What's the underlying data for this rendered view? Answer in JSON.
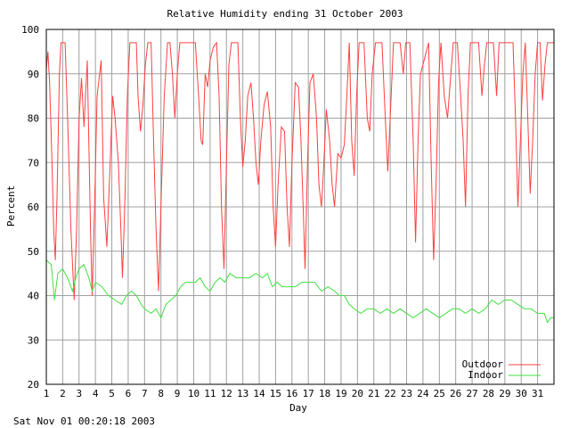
{
  "chart_data": {
    "type": "line",
    "title": "Relative Humidity ending 31 October 2003",
    "xlabel": "Day",
    "ylabel": "Percent",
    "footer": "Sat Nov 01 00:20:18 2003",
    "xlim": [
      1,
      32
    ],
    "ylim": [
      20,
      100
    ],
    "xticks": [
      "1",
      "2",
      "3",
      "4",
      "5",
      "6",
      "7",
      "8",
      "9",
      "10",
      "11",
      "12",
      "13",
      "14",
      "15",
      "16",
      "17",
      "18",
      "19",
      "20",
      "21",
      "22",
      "23",
      "24",
      "25",
      "26",
      "27",
      "28",
      "29",
      "30",
      "31"
    ],
    "yticks": [
      20,
      30,
      40,
      50,
      60,
      70,
      80,
      90,
      100
    ],
    "grid": true,
    "legend_position": "bottom-right",
    "series": [
      {
        "name": "Outdoor",
        "color": "#ff4040",
        "points": [
          [
            1.0,
            91
          ],
          [
            1.1,
            95
          ],
          [
            1.2,
            88
          ],
          [
            1.35,
            70
          ],
          [
            1.45,
            55
          ],
          [
            1.55,
            48
          ],
          [
            1.65,
            62
          ],
          [
            1.8,
            90
          ],
          [
            1.9,
            97
          ],
          [
            2.15,
            97
          ],
          [
            2.3,
            80
          ],
          [
            2.5,
            55
          ],
          [
            2.7,
            39
          ],
          [
            2.85,
            55
          ],
          [
            3.0,
            80
          ],
          [
            3.15,
            89
          ],
          [
            3.3,
            78
          ],
          [
            3.5,
            93
          ],
          [
            3.7,
            55
          ],
          [
            3.8,
            40
          ],
          [
            3.95,
            60
          ],
          [
            4.1,
            85
          ],
          [
            4.35,
            93
          ],
          [
            4.5,
            62
          ],
          [
            4.7,
            51
          ],
          [
            4.9,
            70
          ],
          [
            5.05,
            85
          ],
          [
            5.2,
            80
          ],
          [
            5.4,
            70
          ],
          [
            5.55,
            55
          ],
          [
            5.65,
            44
          ],
          [
            5.8,
            62
          ],
          [
            5.95,
            85
          ],
          [
            6.1,
            97
          ],
          [
            6.5,
            97
          ],
          [
            6.6,
            85
          ],
          [
            6.75,
            77
          ],
          [
            6.9,
            83
          ],
          [
            7.05,
            92
          ],
          [
            7.2,
            97
          ],
          [
            7.4,
            97
          ],
          [
            7.55,
            75
          ],
          [
            7.7,
            55
          ],
          [
            7.85,
            41
          ],
          [
            8.0,
            60
          ],
          [
            8.2,
            85
          ],
          [
            8.4,
            97
          ],
          [
            8.55,
            97
          ],
          [
            8.7,
            90
          ],
          [
            8.85,
            80
          ],
          [
            9.0,
            90
          ],
          [
            9.15,
            97
          ],
          [
            10.1,
            97
          ],
          [
            10.3,
            85
          ],
          [
            10.45,
            75
          ],
          [
            10.55,
            74
          ],
          [
            10.7,
            90
          ],
          [
            10.85,
            87
          ],
          [
            11.0,
            93
          ],
          [
            11.2,
            96
          ],
          [
            11.4,
            97
          ],
          [
            11.55,
            85
          ],
          [
            11.7,
            60
          ],
          [
            11.85,
            46
          ],
          [
            12.0,
            70
          ],
          [
            12.15,
            92
          ],
          [
            12.3,
            97
          ],
          [
            12.7,
            97
          ],
          [
            12.85,
            80
          ],
          [
            13.0,
            69
          ],
          [
            13.15,
            75
          ],
          [
            13.3,
            85
          ],
          [
            13.5,
            88
          ],
          [
            13.65,
            80
          ],
          [
            13.8,
            70
          ],
          [
            13.95,
            65
          ],
          [
            14.1,
            75
          ],
          [
            14.3,
            83
          ],
          [
            14.5,
            86
          ],
          [
            14.7,
            78
          ],
          [
            14.85,
            60
          ],
          [
            15.0,
            51
          ],
          [
            15.15,
            65
          ],
          [
            15.35,
            78
          ],
          [
            15.55,
            77
          ],
          [
            15.7,
            60
          ],
          [
            15.85,
            51
          ],
          [
            16.0,
            70
          ],
          [
            16.2,
            88
          ],
          [
            16.4,
            87
          ],
          [
            16.55,
            75
          ],
          [
            16.7,
            58
          ],
          [
            16.8,
            46
          ],
          [
            16.95,
            70
          ],
          [
            17.1,
            88
          ],
          [
            17.3,
            90
          ],
          [
            17.5,
            80
          ],
          [
            17.65,
            65
          ],
          [
            17.8,
            60
          ],
          [
            17.95,
            70
          ],
          [
            18.1,
            82
          ],
          [
            18.3,
            75
          ],
          [
            18.45,
            65
          ],
          [
            18.6,
            60
          ],
          [
            18.8,
            72
          ],
          [
            19.0,
            71
          ],
          [
            19.2,
            74
          ],
          [
            19.35,
            85
          ],
          [
            19.5,
            97
          ],
          [
            19.65,
            75
          ],
          [
            19.8,
            67
          ],
          [
            19.95,
            85
          ],
          [
            20.1,
            97
          ],
          [
            20.4,
            97
          ],
          [
            20.6,
            80
          ],
          [
            20.75,
            77
          ],
          [
            20.9,
            90
          ],
          [
            21.1,
            97
          ],
          [
            21.5,
            97
          ],
          [
            21.7,
            80
          ],
          [
            21.85,
            68
          ],
          [
            22.0,
            80
          ],
          [
            22.2,
            97
          ],
          [
            22.6,
            97
          ],
          [
            22.8,
            90
          ],
          [
            22.95,
            97
          ],
          [
            23.2,
            97
          ],
          [
            23.4,
            75
          ],
          [
            23.55,
            52
          ],
          [
            23.7,
            75
          ],
          [
            23.85,
            90
          ],
          [
            24.0,
            92
          ],
          [
            24.2,
            95
          ],
          [
            24.35,
            97
          ],
          [
            24.5,
            70
          ],
          [
            24.65,
            48
          ],
          [
            24.8,
            65
          ],
          [
            24.95,
            88
          ],
          [
            25.1,
            97
          ],
          [
            25.3,
            85
          ],
          [
            25.5,
            80
          ],
          [
            25.7,
            90
          ],
          [
            25.85,
            97
          ],
          [
            26.1,
            97
          ],
          [
            26.3,
            85
          ],
          [
            26.45,
            75
          ],
          [
            26.6,
            60
          ],
          [
            26.75,
            85
          ],
          [
            26.9,
            97
          ],
          [
            27.4,
            97
          ],
          [
            27.6,
            85
          ],
          [
            27.75,
            92
          ],
          [
            27.9,
            97
          ],
          [
            28.3,
            97
          ],
          [
            28.5,
            85
          ],
          [
            28.65,
            97
          ],
          [
            29.5,
            97
          ],
          [
            29.65,
            80
          ],
          [
            29.8,
            60
          ],
          [
            29.95,
            75
          ],
          [
            30.1,
            90
          ],
          [
            30.25,
            97
          ],
          [
            30.4,
            80
          ],
          [
            30.55,
            63
          ],
          [
            30.7,
            75
          ],
          [
            30.85,
            90
          ],
          [
            31.0,
            97
          ],
          [
            31.15,
            97
          ],
          [
            31.3,
            84
          ],
          [
            31.45,
            92
          ],
          [
            31.6,
            97
          ],
          [
            32.0,
            97
          ]
        ]
      },
      {
        "name": "Indoor",
        "color": "#40e040",
        "points": [
          [
            1.0,
            48
          ],
          [
            1.3,
            47
          ],
          [
            1.5,
            39
          ],
          [
            1.7,
            45
          ],
          [
            2.0,
            46
          ],
          [
            2.3,
            44
          ],
          [
            2.6,
            41
          ],
          [
            2.8,
            44
          ],
          [
            3.0,
            46
          ],
          [
            3.3,
            47
          ],
          [
            3.6,
            44
          ],
          [
            3.8,
            41
          ],
          [
            4.0,
            43
          ],
          [
            4.4,
            42
          ],
          [
            4.8,
            40
          ],
          [
            5.2,
            39
          ],
          [
            5.6,
            38
          ],
          [
            5.9,
            40
          ],
          [
            6.2,
            41
          ],
          [
            6.5,
            40
          ],
          [
            6.8,
            38
          ],
          [
            7.0,
            37
          ],
          [
            7.4,
            36
          ],
          [
            7.7,
            37
          ],
          [
            8.0,
            35
          ],
          [
            8.3,
            38
          ],
          [
            8.6,
            39
          ],
          [
            8.9,
            40
          ],
          [
            9.2,
            42
          ],
          [
            9.5,
            43
          ],
          [
            9.8,
            43
          ],
          [
            10.1,
            43
          ],
          [
            10.4,
            44
          ],
          [
            10.7,
            42
          ],
          [
            11.0,
            41
          ],
          [
            11.3,
            43
          ],
          [
            11.6,
            44
          ],
          [
            11.9,
            43
          ],
          [
            12.2,
            45
          ],
          [
            12.6,
            44
          ],
          [
            13.0,
            44
          ],
          [
            13.4,
            44
          ],
          [
            13.8,
            45
          ],
          [
            14.2,
            44
          ],
          [
            14.5,
            45
          ],
          [
            14.8,
            42
          ],
          [
            15.1,
            43
          ],
          [
            15.4,
            42
          ],
          [
            15.8,
            42
          ],
          [
            16.2,
            42
          ],
          [
            16.6,
            43
          ],
          [
            17.0,
            43
          ],
          [
            17.4,
            43
          ],
          [
            17.8,
            41
          ],
          [
            18.2,
            42
          ],
          [
            18.6,
            41
          ],
          [
            18.9,
            40
          ],
          [
            19.2,
            40
          ],
          [
            19.5,
            38
          ],
          [
            19.8,
            37
          ],
          [
            20.2,
            36
          ],
          [
            20.6,
            37
          ],
          [
            21.0,
            37
          ],
          [
            21.4,
            36
          ],
          [
            21.8,
            37
          ],
          [
            22.2,
            36
          ],
          [
            22.6,
            37
          ],
          [
            23.0,
            36
          ],
          [
            23.4,
            35
          ],
          [
            23.8,
            36
          ],
          [
            24.2,
            37
          ],
          [
            24.6,
            36
          ],
          [
            25.0,
            35
          ],
          [
            25.4,
            36
          ],
          [
            25.8,
            37
          ],
          [
            26.2,
            37
          ],
          [
            26.6,
            36
          ],
          [
            27.0,
            37
          ],
          [
            27.4,
            36
          ],
          [
            27.8,
            37
          ],
          [
            28.2,
            39
          ],
          [
            28.6,
            38
          ],
          [
            29.0,
            39
          ],
          [
            29.4,
            39
          ],
          [
            29.8,
            38
          ],
          [
            30.2,
            37
          ],
          [
            30.6,
            37
          ],
          [
            31.0,
            36
          ],
          [
            31.4,
            36
          ],
          [
            31.6,
            34
          ],
          [
            31.8,
            35
          ],
          [
            32.0,
            35
          ]
        ]
      }
    ]
  }
}
